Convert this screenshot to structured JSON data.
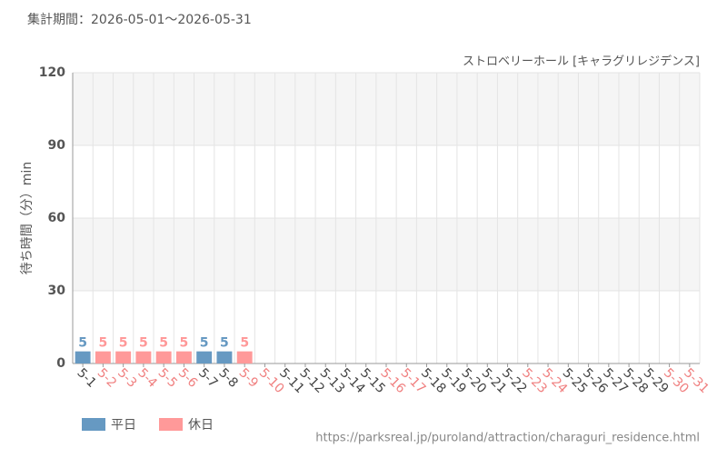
{
  "chart_data": {
    "type": "bar",
    "title": "集計期間：2026-05-01～2026-05-31",
    "subtitle": "ストロベリーホール [キャラグリレジデンス]",
    "y_label": "待ち時間（分）min",
    "source": "https://parksreal.jp/puroland/attraction/charaguri_residence.html",
    "categories": [
      "5-1",
      "5-2",
      "5-3",
      "5-4",
      "5-5",
      "5-6",
      "5-7",
      "5-8",
      "5-9",
      "5-10",
      "5-11",
      "5-12",
      "5-13",
      "5-14",
      "5-15",
      "5-16",
      "5-17",
      "5-18",
      "5-19",
      "5-20",
      "5-21",
      "5-22",
      "5-23",
      "5-24",
      "5-25",
      "5-26",
      "5-27",
      "5-28",
      "5-29",
      "5-30",
      "5-31"
    ],
    "category_label_colors": [
      "#444",
      "#f08080",
      "#f08080",
      "#f08080",
      "#f08080",
      "#f08080",
      "#444",
      "#444",
      "#f08080",
      "#f08080",
      "#444",
      "#444",
      "#444",
      "#444",
      "#444",
      "#f08080",
      "#f08080",
      "#444",
      "#444",
      "#444",
      "#444",
      "#444",
      "#f08080",
      "#f08080",
      "#444",
      "#444",
      "#444",
      "#444",
      "#444",
      "#f08080",
      "#f08080"
    ],
    "series": [
      {
        "name": "平日",
        "color": "#6699c2",
        "values": [
          5,
          null,
          null,
          null,
          null,
          null,
          5,
          5,
          null,
          null,
          null,
          null,
          null,
          null,
          null,
          null,
          null,
          null,
          null,
          null,
          null,
          null,
          null,
          null,
          null,
          null,
          null,
          null,
          null,
          null,
          null
        ]
      },
      {
        "name": "休日",
        "color": "#ff9999",
        "values": [
          null,
          5,
          5,
          5,
          5,
          5,
          null,
          null,
          5,
          null,
          null,
          null,
          null,
          null,
          null,
          null,
          null,
          null,
          null,
          null,
          null,
          null,
          null,
          null,
          null,
          null,
          null,
          null,
          null,
          null,
          null
        ]
      }
    ],
    "ylim": [
      0,
      120
    ],
    "yticks": [
      0,
      30,
      60,
      90,
      120
    ],
    "grid": true
  }
}
